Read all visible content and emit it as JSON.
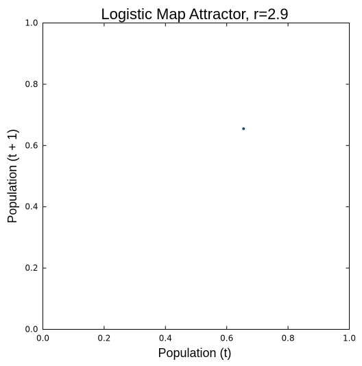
{
  "chart_data": {
    "type": "scatter",
    "title": "Logistic Map Attractor, r=2.9",
    "xlabel": "Population (t)",
    "ylabel": "Population (t + 1)",
    "xlim": [
      0.0,
      1.0
    ],
    "ylim": [
      0.0,
      1.0
    ],
    "x_ticks": [
      "0.0",
      "0.2",
      "0.4",
      "0.6",
      "0.8",
      "1.0"
    ],
    "y_ticks": [
      "0.0",
      "0.2",
      "0.4",
      "0.6",
      "0.8",
      "1.0"
    ],
    "x_tick_values": [
      0.0,
      0.2,
      0.4,
      0.6,
      0.8,
      1.0
    ],
    "y_tick_values": [
      0.0,
      0.2,
      0.4,
      0.6,
      0.8,
      1.0
    ],
    "grid": false,
    "legend": "none",
    "point_color": "#1f4e79",
    "series": [
      {
        "x": [
          0.655
        ],
        "y": [
          0.655
        ]
      }
    ]
  }
}
